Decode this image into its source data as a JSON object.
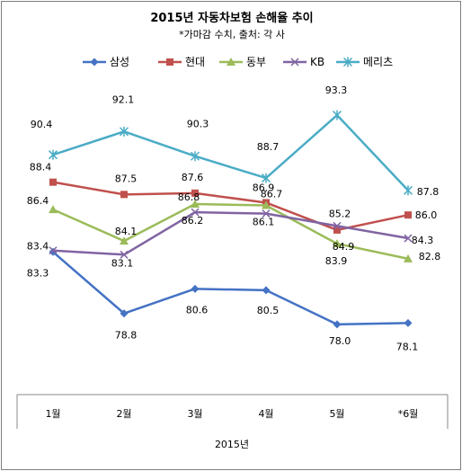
{
  "chart_data": {
    "type": "line",
    "title": "2015년 자동차보험 손해율 추이",
    "subtitle": "*가마감 수치, 출처: 각 사",
    "xlabel": "2015년",
    "ylabel": "",
    "categories": [
      "1월",
      "2월",
      "3월",
      "4월",
      "5월",
      "*6월"
    ],
    "ylim": [
      73,
      96
    ],
    "grid": false,
    "legend": "top",
    "series": [
      {
        "name": "삼성",
        "color": "#4472c4",
        "marker": "diamond",
        "values": [
          83.3,
          78.8,
          80.6,
          80.5,
          78.0,
          78.1
        ]
      },
      {
        "name": "현대",
        "color": "#c0504d",
        "marker": "square",
        "values": [
          88.4,
          87.5,
          87.6,
          86.9,
          84.9,
          86.0
        ]
      },
      {
        "name": "동부",
        "color": "#9bbb59",
        "marker": "triangle",
        "values": [
          86.4,
          84.1,
          86.8,
          86.7,
          83.9,
          82.8
        ]
      },
      {
        "name": "KB",
        "color": "#8064a2",
        "marker": "x",
        "values": [
          83.4,
          83.1,
          86.2,
          86.1,
          85.2,
          84.3
        ]
      },
      {
        "name": "메리츠",
        "color": "#4bacc6",
        "marker": "star",
        "values": [
          90.4,
          92.1,
          90.3,
          88.7,
          93.3,
          87.8
        ]
      }
    ]
  }
}
